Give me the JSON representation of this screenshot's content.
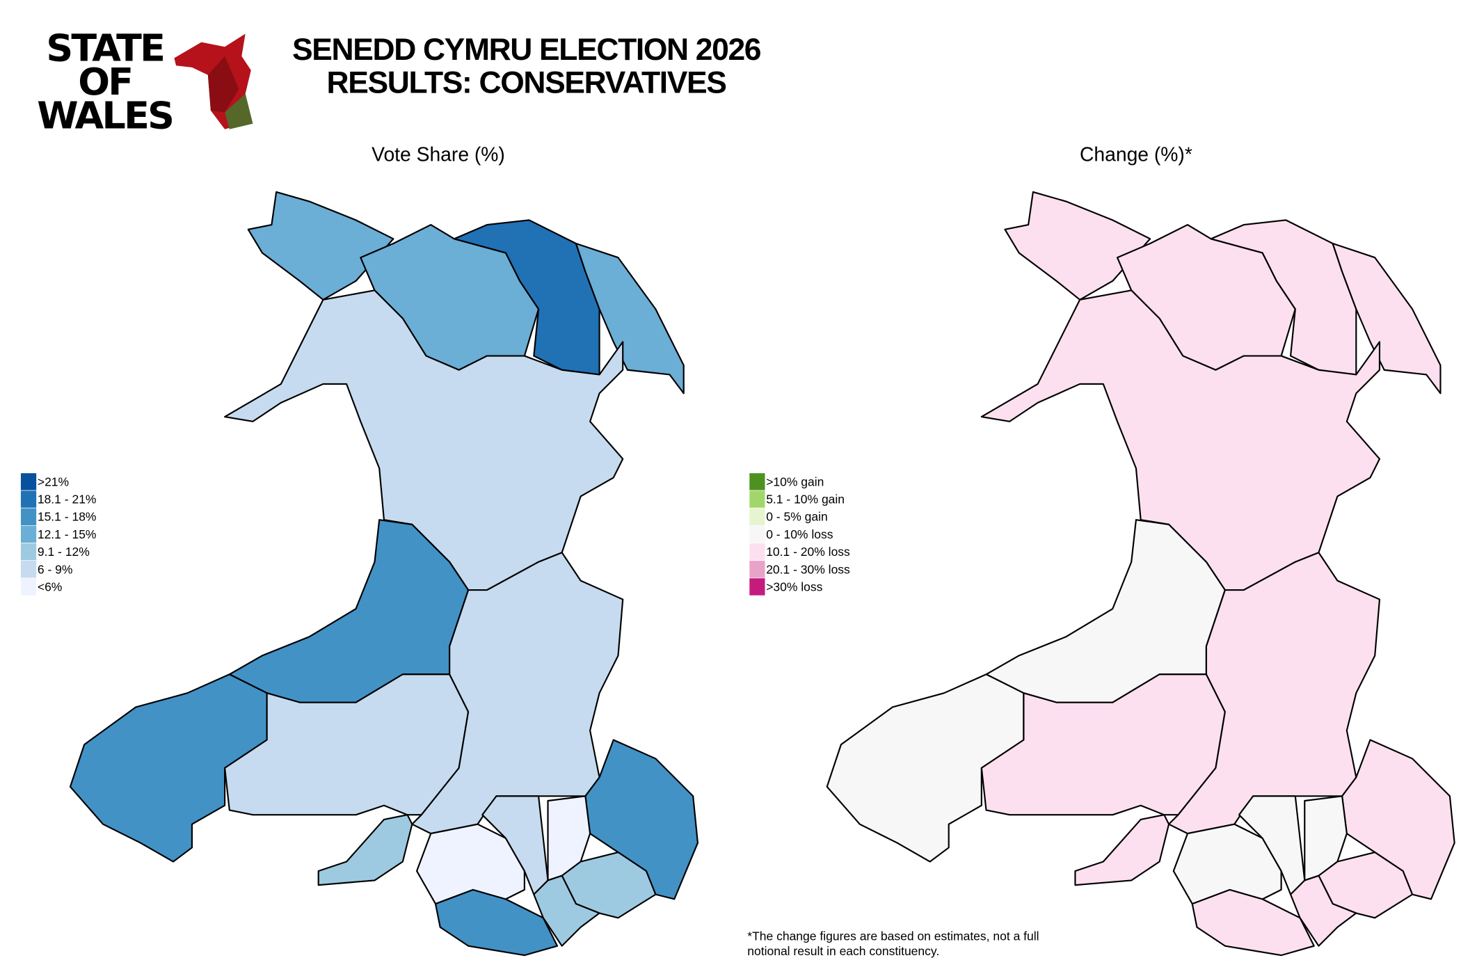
{
  "logo": {
    "lines": [
      "STATE",
      "OF",
      "WALES"
    ]
  },
  "title": {
    "lines": [
      "SENEDD CYMRU ELECTION 2026",
      "RESULTS: CONSERVATIVES"
    ]
  },
  "maps": [
    {
      "title": "Vote Share (%)",
      "legend": [
        {
          "label": ">21%",
          "color": "#08519c"
        },
        {
          "label": "18.1 - 21%",
          "color": "#2171b5"
        },
        {
          "label": "15.1 - 18%",
          "color": "#4292c6"
        },
        {
          "label": "12.1 - 15%",
          "color": "#6baed6"
        },
        {
          "label": "9.1 - 12%",
          "color": "#9ecae1"
        },
        {
          "label": "6 - 9%",
          "color": "#c6dbef"
        },
        {
          "label": "<6%",
          "color": "#eff3ff"
        }
      ]
    },
    {
      "title": "Change (%)*",
      "legend": [
        {
          "label": ">10% gain",
          "color": "#4d9221"
        },
        {
          "label": "5.1 - 10% gain",
          "color": "#a1d76a"
        },
        {
          "label": "0 - 5% gain",
          "color": "#e6f5d0"
        },
        {
          "label": "0 - 10% loss",
          "color": "#f7f7f7"
        },
        {
          "label": "10.1 - 20% loss",
          "color": "#fde0ef"
        },
        {
          "label": "20.1 - 30% loss",
          "color": "#e9a3c9"
        },
        {
          "label": ">30% loss",
          "color": "#c51b7d"
        }
      ]
    }
  ],
  "footnote": [
    "*The change figures are based on estimates, not a full",
    "notional result in each constituency."
  ]
}
